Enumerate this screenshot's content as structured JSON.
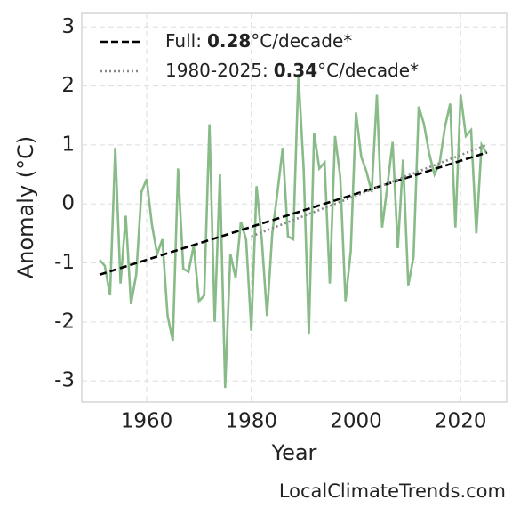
{
  "chart_data": {
    "type": "line",
    "xlabel": "Year",
    "ylabel": "Anomaly (°C)",
    "watermark": "LocalClimateTrends.com",
    "xlim": [
      1947.6,
      2028.8
    ],
    "ylim": [
      -3.36,
      3.23
    ],
    "xticks": [
      1960,
      1980,
      2000,
      2020
    ],
    "yticks": [
      -3,
      -2,
      -1,
      0,
      1,
      2,
      3
    ],
    "grid": true,
    "legend": "upper left",
    "series": [
      {
        "color": "#88bb88",
        "style": "solid",
        "x": [
          1951,
          1952,
          1953,
          1954,
          1955,
          1956,
          1957,
          1958,
          1959,
          1960,
          1961,
          1962,
          1963,
          1964,
          1965,
          1966,
          1967,
          1968,
          1969,
          1970,
          1971,
          1972,
          1973,
          1974,
          1975,
          1976,
          1977,
          1978,
          1979,
          1980,
          1981,
          1982,
          1983,
          1984,
          1985,
          1986,
          1987,
          1988,
          1989,
          1990,
          1991,
          1992,
          1993,
          1994,
          1995,
          1996,
          1997,
          1998,
          1999,
          2000,
          2001,
          2002,
          2003,
          2004,
          2005,
          2006,
          2007,
          2008,
          2009,
          2010,
          2011,
          2012,
          2013,
          2014,
          2015,
          2016,
          2017,
          2018,
          2019,
          2020,
          2021,
          2022,
          2023,
          2024,
          2025
        ],
        "values": [
          -0.95,
          -1.05,
          -1.55,
          0.95,
          -1.35,
          -0.2,
          -1.7,
          -1.2,
          0.2,
          0.42,
          -0.35,
          -0.85,
          -0.6,
          -1.9,
          -2.32,
          0.6,
          -1.1,
          -1.15,
          -0.7,
          -1.65,
          -1.55,
          1.35,
          -2.0,
          0.5,
          -3.12,
          -0.85,
          -1.25,
          -0.3,
          -0.6,
          -2.15,
          0.3,
          -0.6,
          -1.9,
          -0.5,
          0.2,
          0.95,
          -0.55,
          -0.6,
          2.2,
          0.6,
          -2.2,
          1.2,
          0.6,
          0.7,
          -1.35,
          1.15,
          0.45,
          -1.65,
          -0.8,
          1.55,
          0.8,
          0.55,
          0.2,
          1.85,
          -0.4,
          0.3,
          1.05,
          -0.75,
          0.75,
          -1.38,
          -0.9,
          1.65,
          1.35,
          0.85,
          0.5,
          0.7,
          1.3,
          1.7,
          -0.4,
          1.85,
          1.15,
          1.25,
          -0.5,
          1.0,
          0.85
        ]
      },
      {
        "name": "Full:",
        "rate": 0.28,
        "unit": "°C/decade*",
        "color": "#000000",
        "style": "dashed",
        "x": [
          1951,
          2025
        ],
        "values": [
          -1.2,
          0.87
        ]
      },
      {
        "name": "1980-2025:",
        "rate": 0.34,
        "unit": "°C/decade*",
        "color": "#888888",
        "style": "dotted",
        "x": [
          1980,
          2025
        ],
        "values": [
          -0.55,
          1.0
        ]
      }
    ]
  }
}
